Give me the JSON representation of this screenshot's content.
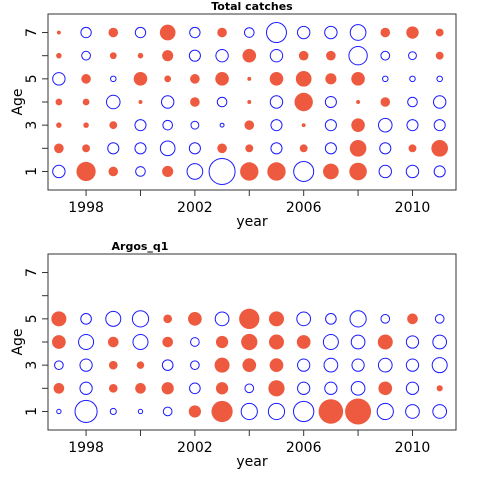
{
  "figure": {
    "colors": {
      "positive": "#ee5a3f",
      "negative": "#1a1aff",
      "frame": "#333333",
      "background": "#ffffff"
    },
    "legend": "none",
    "grid": false
  },
  "chart_data": [
    {
      "type": "bubble",
      "title": "Total catches",
      "xlabel": "year",
      "ylabel": "Age",
      "xlim": [
        1996.6,
        2011.6
      ],
      "ylim": [
        0.2,
        7.8
      ],
      "x_ticks": [
        1998,
        2002,
        2006,
        2010
      ],
      "y_ticks": [
        1,
        3,
        5,
        7
      ],
      "encoding": "bubble area proportional to residual magnitude; filled red = positive, open blue = negative",
      "years": [
        1997,
        1998,
        1999,
        2000,
        2001,
        2002,
        2003,
        2004,
        2005,
        2006,
        2007,
        2008,
        2009,
        2010,
        2011
      ],
      "ages": [
        1,
        2,
        3,
        4,
        5,
        6,
        7
      ],
      "residuals": [
        [
          -0.5,
          1.2,
          0.3,
          -0.3,
          0.4,
          -0.8,
          -2.2,
          1.1,
          1.1,
          -1.3,
          0.8,
          1.0,
          -0.5,
          -0.5,
          -0.4
        ],
        [
          0.3,
          0.2,
          -0.4,
          -0.4,
          -0.7,
          -0.4,
          0.3,
          0.2,
          -0.4,
          0.2,
          -0.4,
          0.9,
          -0.4,
          0.2,
          0.9
        ],
        [
          0.1,
          0.1,
          0.2,
          -0.4,
          -0.3,
          -0.2,
          -0.05,
          0.3,
          -0.4,
          0.05,
          -0.4,
          0.6,
          -0.6,
          -0.4,
          -0.4
        ],
        [
          0.15,
          0.15,
          -0.6,
          0.05,
          -0.5,
          0.3,
          -0.3,
          0.05,
          -0.5,
          1.1,
          -0.4,
          0.05,
          0.3,
          -0.3,
          -0.5
        ],
        [
          -0.5,
          0.3,
          -0.1,
          0.6,
          0.15,
          0.3,
          0.6,
          0.05,
          0.6,
          0.8,
          0.4,
          0.6,
          -0.1,
          -0.1,
          -0.1
        ],
        [
          0.1,
          -0.25,
          0.15,
          0.1,
          0.4,
          -0.4,
          -0.5,
          0.6,
          -0.5,
          0.3,
          0.3,
          -1.1,
          -0.25,
          -0.2,
          0.2
        ],
        [
          0.05,
          -0.35,
          0.3,
          -0.35,
          0.8,
          -0.35,
          0.3,
          -0.3,
          -1.3,
          -0.5,
          -0.5,
          -0.8,
          0.3,
          0.5,
          0.2
        ]
      ]
    },
    {
      "type": "bubble",
      "title": "Argos_q1",
      "xlabel": "year",
      "ylabel": "Age",
      "xlim": [
        1996.6,
        2011.6
      ],
      "ylim": [
        0.2,
        7.8
      ],
      "x_ticks": [
        1998,
        2002,
        2006,
        2010
      ],
      "y_ticks": [
        1,
        3,
        5,
        7
      ],
      "encoding": "bubble area proportional to residual magnitude; filled red = positive, open blue = negative",
      "years": [
        1997,
        1998,
        1999,
        2000,
        2001,
        2002,
        2003,
        2004,
        2005,
        2006,
        2007,
        2008,
        2009,
        2010,
        2011
      ],
      "ages": [
        1,
        2,
        3,
        4,
        5
      ],
      "residuals": [
        [
          -0.05,
          -1.3,
          -0.1,
          -0.05,
          -0.2,
          0.4,
          1.2,
          -0.7,
          -0.7,
          -1.1,
          1.6,
          1.8,
          -0.7,
          -0.5,
          -0.5
        ],
        [
          0.3,
          -0.4,
          0.2,
          0.3,
          0.4,
          -0.3,
          0.4,
          -0.2,
          0.7,
          -0.4,
          -0.4,
          -0.5,
          0.5,
          -0.4,
          0.1
        ],
        [
          -0.2,
          -0.4,
          0.2,
          0.15,
          -0.3,
          -0.2,
          0.6,
          0.5,
          0.5,
          -0.4,
          -0.5,
          -0.4,
          -0.5,
          -0.4,
          -0.6
        ],
        [
          0.5,
          -0.6,
          0.3,
          -0.6,
          0.3,
          -0.2,
          0.4,
          0.7,
          0.6,
          0.5,
          -0.6,
          -0.5,
          0.6,
          -0.4,
          -0.5
        ],
        [
          0.6,
          -0.3,
          -0.6,
          -0.7,
          0.2,
          0.5,
          -0.5,
          1.1,
          0.6,
          -0.5,
          -0.3,
          -0.7,
          -0.2,
          0.3,
          -0.2
        ]
      ]
    }
  ]
}
